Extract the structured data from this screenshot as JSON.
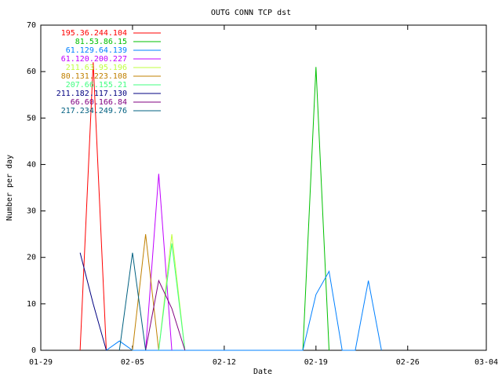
{
  "chart_data": {
    "type": "line",
    "title": "OUTG CONN TCP dst",
    "x_label": "Date",
    "y_label": "Number per day",
    "xlim": [
      "01-29",
      "03-04"
    ],
    "xticks": [
      "01-29",
      "02-05",
      "02-12",
      "02-19",
      "02-26",
      "03-04"
    ],
    "ylim": [
      0,
      70
    ],
    "yticks": [
      0,
      10,
      20,
      30,
      40,
      50,
      60,
      70
    ],
    "grid": false,
    "legend": "top-left",
    "series": [
      {
        "name": "195.36.244.104",
        "color": "#ff0000",
        "x": [
          "02-01",
          "02-02",
          "02-03"
        ],
        "values": [
          0,
          62,
          0
        ]
      },
      {
        "name": "81.53.86.15",
        "color": "#00c000",
        "x": [
          "02-18",
          "02-19",
          "02-20"
        ],
        "values": [
          0,
          61,
          0
        ]
      },
      {
        "name": "61.129.64.139",
        "color": "#0080ff",
        "x": [
          "02-03",
          "02-04",
          "02-05",
          "02-18",
          "02-19",
          "02-20",
          "02-21",
          "02-22",
          "02-23",
          "02-24"
        ],
        "values": [
          0,
          2,
          0,
          0,
          12,
          17,
          0,
          0,
          15,
          0
        ]
      },
      {
        "name": "61.120.200.227",
        "color": "#c000ff",
        "x": [
          "02-06",
          "02-07",
          "02-08"
        ],
        "values": [
          0,
          38,
          0
        ]
      },
      {
        "name": "211.63.95.196",
        "color": "#c0ff40",
        "x": [
          "02-07",
          "02-08",
          "02-09"
        ],
        "values": [
          0,
          25,
          0
        ]
      },
      {
        "name": "80.131.223.108",
        "color": "#c08000",
        "x": [
          "02-05",
          "02-06",
          "02-07"
        ],
        "values": [
          0,
          25,
          0
        ]
      },
      {
        "name": "207.66.155.21",
        "color": "#40ff80",
        "x": [
          "02-07",
          "02-08",
          "02-09"
        ],
        "values": [
          0,
          23,
          0
        ]
      },
      {
        "name": "211.182.117.130",
        "color": "#000080",
        "x": [
          "02-01",
          "02-02",
          "02-03"
        ],
        "values": [
          21,
          10,
          0
        ]
      },
      {
        "name": "66.60.166.84",
        "color": "#800080",
        "x": [
          "02-06",
          "02-07",
          "02-08",
          "02-09"
        ],
        "values": [
          0,
          15,
          9,
          0
        ]
      },
      {
        "name": "217.234.249.76",
        "color": "#006080",
        "x": [
          "02-04",
          "02-05",
          "02-06"
        ],
        "values": [
          0,
          21,
          0
        ]
      }
    ]
  }
}
